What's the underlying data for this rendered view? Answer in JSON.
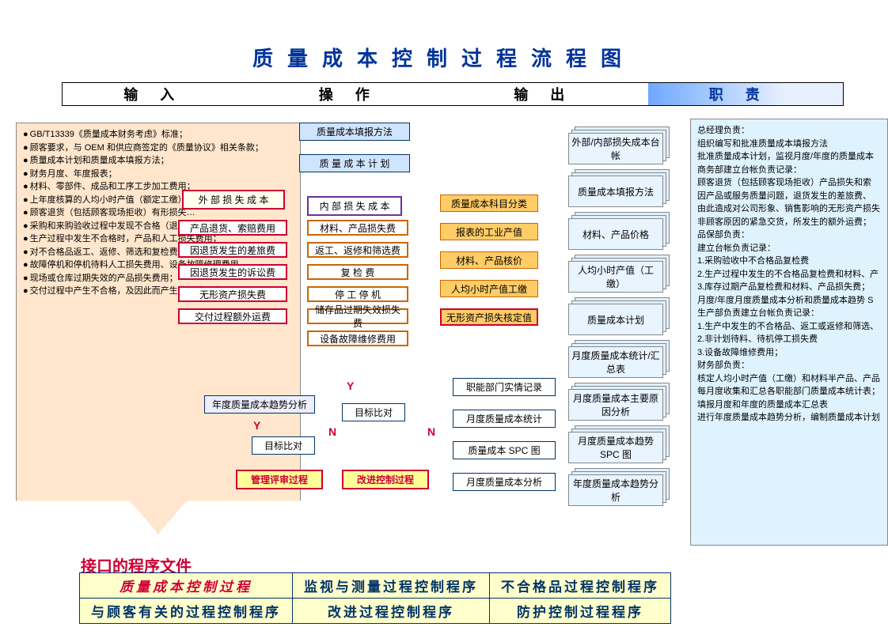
{
  "title": "质量成本控制过程流程图",
  "header": {
    "input": "输入",
    "operate": "操作",
    "output": "输出",
    "duty": "职责"
  },
  "input_list": [
    "GB/T13339《质量成本财务考虑》标准；",
    "顾客要求，与 OEM 和供应商签定的《质量协议》相关条款；",
    "质量成本计划和质量成本填报方法；",
    "财务月度、年度报表；",
    "材料、零部件、成品和工序工步加工费用；",
    "上年度核算的人均小时产值（额定工缴）",
    "顾客退货（包括顾客现场拒收）有形损失…",
    "采购和来购验收过程中发现不合格（退货）损失…",
    "生产过程中发生不合格时，产品和人工损失费用；",
    "对不合格品返工、返修、筛选和复检费；",
    "故障停机和停机待料人工损失费用、设备故障修理费用",
    "现场或仓库过期失效的产品损失费用；",
    "交付过程中产生不合格，及因此而产生的额外运费；"
  ],
  "right_text": "总经理负责：\n组织编写和批准质量成本填报方法\n批准质量成本计划，监视月度/年度的质量成本\n 商务部建立台帐负责记录：\n顾客退货（包括顾客现场拒收）产品损失和索\n因产品或服务质量问题，退货发生的差旅费、\n由此造成对公司形象、销售影响的无形资产损失\n非顾客原因的紧急交货，所发生的额外运费；\n 品保部负责：\n建立台帐负责记录：\n1.采购验收中不合格品复检费\n2.生产过程中发生的不合格品复检费和材料、产\n3.库存过期产品复检费和材料、产品损失费；\n  月度/年度月度质量成本分析和质量成本趋势 S\n  生产部负责建立台帐负责记录：\n  1.生产中发生的不合格品、返工或返修和筛选、\n  2.非计划待料、待机停工损失费\n  3.设备故障维修费用；\n  财务部负责：\n核定人均小时产值（工缴）和材料半产品、产品\n每月度收集和汇总各职能部门质量成本统计表；\n填报月度和年度的质量成本汇总表\n进行年度质量成本趋势分析，编制质量成本计划",
  "flow": {
    "top1": "质量成本填报方法",
    "top2": "质 量 成 本 计 划",
    "ext_loss": "外 部 损 失 成 本",
    "int_loss": "内 部 损 失 成 本",
    "ext_items": [
      "产品退货、索赔费用",
      "因退货发生的差旅费",
      "因退货发生的诉讼费",
      "无形资产损失费",
      "交付过程额外运费"
    ],
    "int_items": [
      "材料、产品损失费",
      "返工、返修和筛选费",
      "复    检    费",
      "停  工  停  机",
      "储存品过期失效损失费",
      "设备故障维修费用"
    ],
    "orange_col": [
      "质量成本科目分类",
      "报表的工业产值",
      "材料、产品核价",
      "人均小时产值工缴",
      "无形资产损失核定值"
    ],
    "out_col": [
      "外部/内部损失成本台帐",
      "质量成本填报方法",
      "材料、产品价格",
      "人均小时产值（工缴）",
      "质量成本计划",
      "月度质量成本统计/汇总表",
      "月度质量成本主要原因分析",
      "月度质量成本趋势 SPC 图",
      "年度质量成本趋势分析"
    ],
    "trend": "年度质量成本趋势分析",
    "cmp1": "目标比对",
    "cmp2": "目标比对",
    "review": "管理评审过程",
    "improve": "改进控制过程",
    "record": "职能部门实情记录",
    "mstat": "月度质量成本统计",
    "spc": "质量成本 SPC 图",
    "manal": "月度质量成本分析"
  },
  "yn": {
    "y": "Y",
    "n": "N"
  },
  "interface_title": "接口的程序文件",
  "interface_table": [
    [
      "质量成本控制过程",
      "监视与测量过程控制程序",
      "不合格品过程控制程序"
    ],
    [
      "与顾客有关的过程控制程序",
      "改进过程控制程序",
      "防护控制过程程序"
    ]
  ],
  "colors": {
    "title": "#003399",
    "panel_input": "#ffe6cc",
    "panel_right": "#dff3ff"
  }
}
